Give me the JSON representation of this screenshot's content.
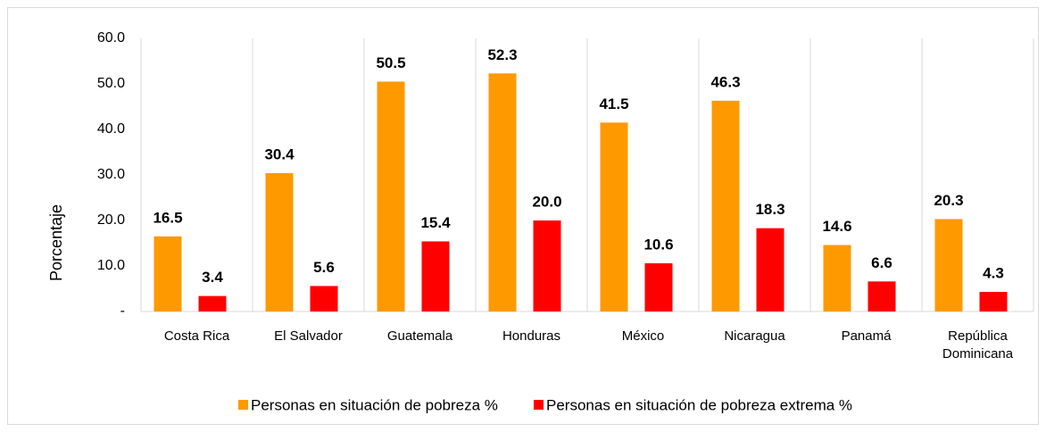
{
  "chart_data": {
    "type": "bar",
    "y_axis_label": "Porcentaje",
    "categories": [
      "Costa Rica",
      "El Salvador",
      "Guatemala",
      "Honduras",
      "México",
      "Nicaragua",
      "Panamá",
      "República Dominicana"
    ],
    "series": [
      {
        "name": "Personas en situación de pobreza %",
        "color": "#ff9900",
        "values": [
          16.5,
          30.4,
          50.5,
          52.3,
          41.5,
          46.3,
          14.6,
          20.3
        ],
        "value_labels": [
          "16.5",
          "30.4",
          "50.5",
          "52.3",
          "41.5",
          "46.3",
          "14.6",
          "20.3"
        ]
      },
      {
        "name": "Personas en situación de pobreza extrema %",
        "color": "#ff0000",
        "values": [
          3.4,
          5.6,
          15.4,
          20.0,
          10.6,
          18.3,
          6.6,
          4.3
        ],
        "value_labels": [
          "3.4",
          "5.6",
          "15.4",
          "20.0",
          "10.6",
          "18.3",
          "6.6",
          "4.3"
        ]
      }
    ],
    "ylim": [
      0,
      60
    ],
    "yticks": [
      {
        "value": 0,
        "label": "-"
      },
      {
        "value": 10,
        "label": "10.0"
      },
      {
        "value": 20,
        "label": "20.0"
      },
      {
        "value": 30,
        "label": "30.0"
      },
      {
        "value": 40,
        "label": "40.0"
      },
      {
        "value": 50,
        "label": "50.0"
      },
      {
        "value": 60,
        "label": "60.0"
      }
    ],
    "legend": "bottom"
  }
}
